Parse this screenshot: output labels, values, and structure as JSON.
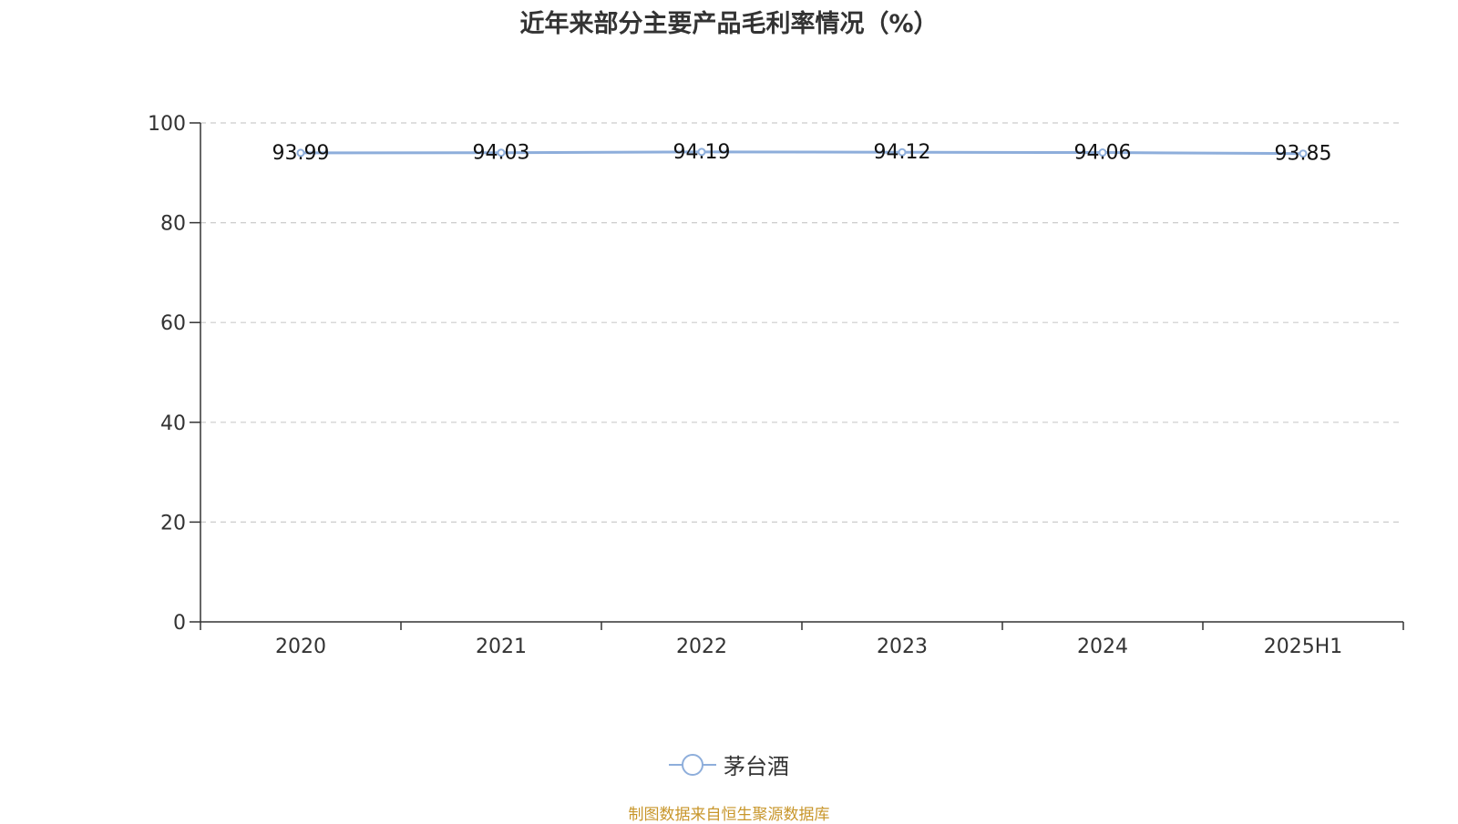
{
  "chart_data": {
    "type": "line",
    "title": "近年来部分主要产品毛利率情况（%）",
    "categories": [
      "2020",
      "2021",
      "2022",
      "2023",
      "2024",
      "2025H1"
    ],
    "series": [
      {
        "name": "茅台酒",
        "values": [
          93.99,
          94.03,
          94.19,
          94.12,
          94.06,
          93.85
        ],
        "color": "#8eaedb"
      }
    ],
    "ylim": [
      0,
      100
    ],
    "yticks": [
      0,
      20,
      40,
      60,
      80,
      100
    ],
    "xlabel": "",
    "ylabel": "",
    "grid": "horizontal-dashed",
    "legend_position": "bottom-center",
    "data_labels": true
  },
  "footer": {
    "source": "制图数据来自恒生聚源数据库",
    "source_color": "#c8962b"
  },
  "colors": {
    "axis": "#333333",
    "grid": "#cccccc",
    "text": "#333333"
  }
}
